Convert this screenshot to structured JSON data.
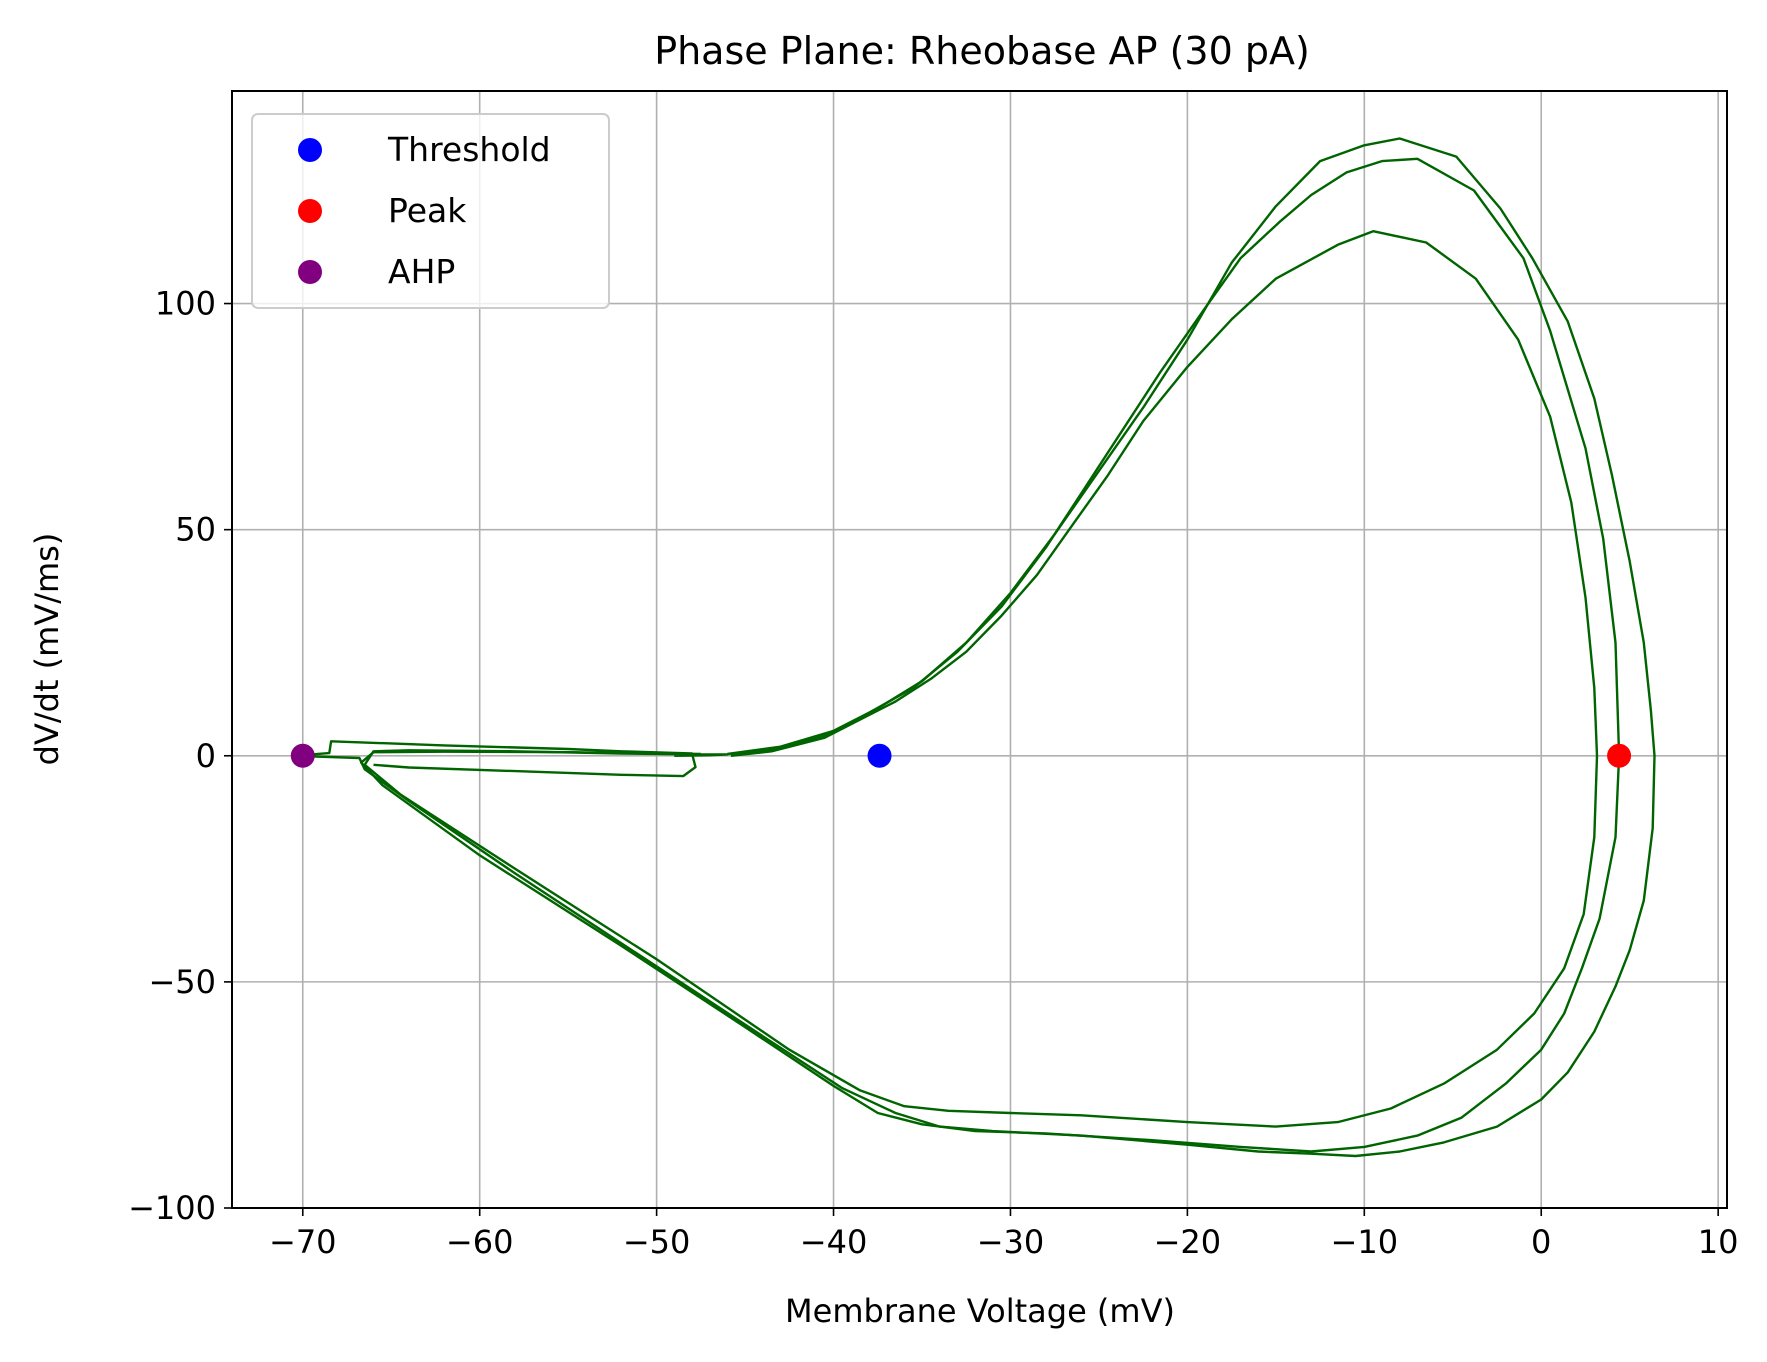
{
  "chart_data": {
    "type": "line",
    "title": "Phase Plane: Rheobase AP (30 pA)",
    "xlabel": "Membrane Voltage (mV)",
    "ylabel": "dV/dt (mV/ms)",
    "xlim": [
      -74,
      10.5
    ],
    "ylim": [
      -100,
      147
    ],
    "xticks": [
      -70,
      -60,
      -50,
      -40,
      -30,
      -20,
      -10,
      0,
      10
    ],
    "yticks": [
      -100,
      -50,
      0,
      50,
      100
    ],
    "xtick_labels": [
      "−70",
      "−60",
      "−50",
      "−40",
      "−30",
      "−20",
      "−10",
      "0",
      "10"
    ],
    "ytick_labels": [
      "−100",
      "−50",
      "0",
      "50",
      "100"
    ],
    "grid": true,
    "legend_position": "upper left",
    "series": [
      {
        "color": "#006400",
        "points": [
          [
            -45.8,
            0.0
          ],
          [
            -43.5,
            1.0
          ],
          [
            -40.5,
            4.0
          ],
          [
            -38.5,
            8.0
          ],
          [
            -36.5,
            12.0
          ],
          [
            -34.5,
            17.0
          ],
          [
            -32.5,
            23.0
          ],
          [
            -30.5,
            31.0
          ],
          [
            -28.5,
            40.0
          ],
          [
            -26.5,
            51.0
          ],
          [
            -24.5,
            62.0
          ],
          [
            -22.5,
            74.0
          ],
          [
            -20.0,
            86.0
          ],
          [
            -17.5,
            96.5
          ],
          [
            -15.0,
            105.5
          ],
          [
            -11.5,
            113.0
          ],
          [
            -9.5,
            116.0
          ],
          [
            -6.5,
            113.5
          ],
          [
            -3.7,
            105.5
          ],
          [
            -1.3,
            92.0
          ],
          [
            0.5,
            75.0
          ],
          [
            1.7,
            56.0
          ],
          [
            2.5,
            35.0
          ],
          [
            3.0,
            15.0
          ],
          [
            3.15,
            0.0
          ],
          [
            3.0,
            -18.0
          ],
          [
            2.4,
            -35.0
          ],
          [
            1.3,
            -47.0
          ],
          [
            -0.4,
            -57.0
          ],
          [
            -2.5,
            -65.0
          ],
          [
            -5.5,
            -72.5
          ],
          [
            -8.5,
            -78.0
          ],
          [
            -11.5,
            -81.0
          ],
          [
            -15.0,
            -82.0
          ],
          [
            -20.0,
            -81.0
          ],
          [
            -26.0,
            -79.5
          ],
          [
            -30.0,
            -79.0
          ],
          [
            -33.5,
            -78.5
          ],
          [
            -36.0,
            -77.5
          ],
          [
            -38.5,
            -74.0
          ],
          [
            -42.5,
            -65.0
          ],
          [
            -50.0,
            -45.0
          ],
          [
            -58.0,
            -25.0
          ],
          [
            -64.5,
            -8.5
          ],
          [
            -66.5,
            -2.0
          ],
          [
            -66.0,
            1.0
          ],
          [
            -64.0,
            1.2
          ],
          [
            -58.0,
            1.0
          ],
          [
            -52.0,
            0.5
          ],
          [
            -48.0,
            0.3
          ],
          [
            -46.0,
            0.3
          ],
          [
            -47.0,
            0.1
          ],
          [
            -49.0,
            0.0
          ]
        ]
      },
      {
        "color": "#006400",
        "points": [
          [
            -45.8,
            0.2
          ],
          [
            -43.5,
            1.3
          ],
          [
            -40.5,
            4.5
          ],
          [
            -38.0,
            9.5
          ],
          [
            -35.5,
            15.0
          ],
          [
            -33.0,
            23.0
          ],
          [
            -30.5,
            33.0
          ],
          [
            -28.0,
            46.0
          ],
          [
            -26.0,
            58.0
          ],
          [
            -24.0,
            70.0
          ],
          [
            -21.5,
            85.0
          ],
          [
            -19.0,
            99.0
          ],
          [
            -17.0,
            110.0
          ],
          [
            -14.8,
            118.0
          ],
          [
            -13.0,
            124.0
          ],
          [
            -11.0,
            129.0
          ],
          [
            -9.0,
            131.5
          ],
          [
            -7.0,
            132.0
          ],
          [
            -3.8,
            125.0
          ],
          [
            -1.0,
            110.0
          ],
          [
            0.5,
            94.0
          ],
          [
            2.5,
            68.0
          ],
          [
            3.5,
            48.0
          ],
          [
            4.2,
            25.0
          ],
          [
            4.4,
            0.0
          ],
          [
            4.2,
            -18.0
          ],
          [
            3.3,
            -36.0
          ],
          [
            2.3,
            -47.0
          ],
          [
            1.3,
            -57.0
          ],
          [
            0.0,
            -65.0
          ],
          [
            -2.0,
            -72.5
          ],
          [
            -4.5,
            -80.0
          ],
          [
            -7.0,
            -84.0
          ],
          [
            -10.0,
            -86.5
          ],
          [
            -13.0,
            -87.5
          ],
          [
            -17.0,
            -86.5
          ],
          [
            -22.0,
            -85.0
          ],
          [
            -28.0,
            -83.5
          ],
          [
            -32.0,
            -83.0
          ],
          [
            -35.0,
            -81.5
          ],
          [
            -37.5,
            -79.0
          ],
          [
            -40.0,
            -73.0
          ],
          [
            -45.0,
            -60.0
          ],
          [
            -52.0,
            -42.0
          ],
          [
            -60.0,
            -22.0
          ],
          [
            -65.5,
            -6.5
          ],
          [
            -66.7,
            -1.5
          ],
          [
            -66.0,
            0.8
          ],
          [
            -62.0,
            0.9
          ],
          [
            -55.0,
            0.8
          ],
          [
            -50.0,
            0.5
          ],
          [
            -47.5,
            0.4
          ]
        ]
      },
      {
        "color": "#006400",
        "points": [
          [
            -46.0,
            0.4
          ],
          [
            -43.0,
            2.0
          ],
          [
            -40.0,
            5.5
          ],
          [
            -37.5,
            10.5
          ],
          [
            -35.0,
            16.5
          ],
          [
            -32.5,
            25.0
          ],
          [
            -30.0,
            36.0
          ],
          [
            -27.5,
            49.0
          ],
          [
            -25.0,
            63.0
          ],
          [
            -22.5,
            77.0
          ],
          [
            -20.0,
            92.0
          ],
          [
            -17.5,
            109.0
          ],
          [
            -15.0,
            121.5
          ],
          [
            -12.5,
            131.5
          ],
          [
            -10.0,
            135.0
          ],
          [
            -8.0,
            136.5
          ],
          [
            -4.8,
            132.5
          ],
          [
            -2.3,
            121.0
          ],
          [
            -0.5,
            110.0
          ],
          [
            1.5,
            96.0
          ],
          [
            3.0,
            79.0
          ],
          [
            4.0,
            62.0
          ],
          [
            5.0,
            43.0
          ],
          [
            5.8,
            25.0
          ],
          [
            6.2,
            10.0
          ],
          [
            6.4,
            0.0
          ],
          [
            6.3,
            -16.0
          ],
          [
            5.8,
            -32.0
          ],
          [
            5.0,
            -43.0
          ],
          [
            4.2,
            -51.0
          ],
          [
            3.0,
            -61.0
          ],
          [
            1.5,
            -70.0
          ],
          [
            0.0,
            -76.0
          ],
          [
            -2.5,
            -82.0
          ],
          [
            -5.5,
            -85.5
          ],
          [
            -8.0,
            -87.5
          ],
          [
            -10.5,
            -88.5
          ],
          [
            -13.0,
            -88.0
          ],
          [
            -16.0,
            -87.5
          ],
          [
            -20.0,
            -86.0
          ],
          [
            -26.0,
            -84.0
          ],
          [
            -31.0,
            -83.0
          ],
          [
            -34.0,
            -82.0
          ],
          [
            -36.5,
            -79.0
          ],
          [
            -39.5,
            -73.5
          ],
          [
            -44.0,
            -62.0
          ],
          [
            -51.0,
            -44.0
          ],
          [
            -58.0,
            -26.0
          ],
          [
            -64.0,
            -10.0
          ],
          [
            -66.5,
            -3.0
          ],
          [
            -66.8,
            -0.5
          ],
          [
            -70.5,
            0.0
          ],
          [
            -68.5,
            0.6
          ],
          [
            -68.4,
            3.2
          ],
          [
            -62.0,
            2.3
          ],
          [
            -55.0,
            1.5
          ],
          [
            -52.0,
            1.0
          ],
          [
            -48.0,
            0.5
          ],
          [
            -47.8,
            -2.5
          ],
          [
            -48.5,
            -4.5
          ],
          [
            -52.0,
            -4.2
          ],
          [
            -58.0,
            -3.4
          ],
          [
            -64.0,
            -2.6
          ],
          [
            -66.0,
            -2.0
          ]
        ]
      }
    ],
    "markers": [
      {
        "name": "Threshold",
        "x": -37.4,
        "y": 0,
        "color": "#0000ff"
      },
      {
        "name": "Peak",
        "x": 4.4,
        "y": 0,
        "color": "#ff0000"
      },
      {
        "name": "AHP",
        "x": -70.0,
        "y": 0,
        "color": "#800080"
      }
    ]
  }
}
